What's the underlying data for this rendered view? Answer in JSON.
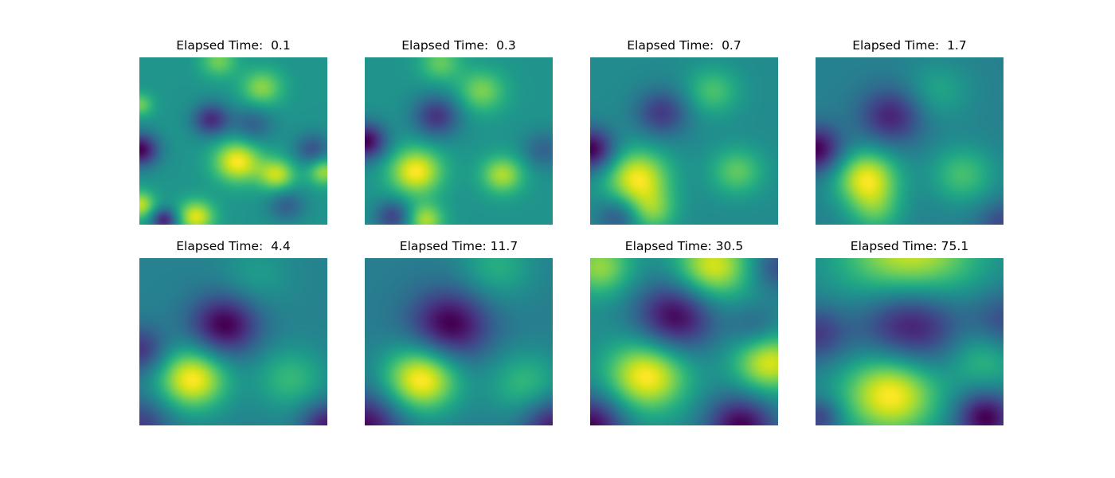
{
  "figure": {
    "colormap": "viridis",
    "grid": false,
    "axes_visible": false
  },
  "chart_data": [
    {
      "type": "heatmap",
      "title": "Elapsed Time:  0.1",
      "elapsed_time": 0.1,
      "colormap": "viridis",
      "description_values": "random multi-scale field with scattered bright blobs (lower-left, center-left, right) and dark spots (left edge, upper-center)",
      "blobs": [
        {
          "x": 0.52,
          "y": 0.62,
          "a": 0.55,
          "s": 0.09
        },
        {
          "x": 0.3,
          "y": 0.95,
          "a": 0.5,
          "s": 0.07
        },
        {
          "x": 0.0,
          "y": 0.88,
          "a": 0.45,
          "s": 0.06
        },
        {
          "x": 0.73,
          "y": 0.7,
          "a": 0.45,
          "s": 0.07
        },
        {
          "x": 0.98,
          "y": 0.68,
          "a": 0.4,
          "s": 0.06
        },
        {
          "x": 0.65,
          "y": 0.18,
          "a": 0.35,
          "s": 0.08
        },
        {
          "x": 0.42,
          "y": 0.02,
          "a": 0.3,
          "s": 0.07
        },
        {
          "x": 0.0,
          "y": 0.28,
          "a": 0.3,
          "s": 0.05
        },
        {
          "x": 0.0,
          "y": 0.55,
          "a": -0.6,
          "s": 0.07
        },
        {
          "x": 0.38,
          "y": 0.37,
          "a": -0.45,
          "s": 0.07
        },
        {
          "x": 0.13,
          "y": 0.97,
          "a": -0.5,
          "s": 0.05
        },
        {
          "x": 0.6,
          "y": 0.4,
          "a": -0.25,
          "s": 0.08
        },
        {
          "x": 0.92,
          "y": 0.55,
          "a": -0.3,
          "s": 0.07
        },
        {
          "x": 0.78,
          "y": 0.88,
          "a": -0.25,
          "s": 0.07
        }
      ]
    },
    {
      "type": "heatmap",
      "title": "Elapsed Time:  0.3",
      "elapsed_time": 0.3,
      "colormap": "viridis",
      "blobs": [
        {
          "x": 0.27,
          "y": 0.68,
          "a": 0.6,
          "s": 0.1
        },
        {
          "x": 0.32,
          "y": 0.97,
          "a": 0.45,
          "s": 0.07
        },
        {
          "x": 0.73,
          "y": 0.7,
          "a": 0.45,
          "s": 0.08
        },
        {
          "x": 0.62,
          "y": 0.2,
          "a": 0.35,
          "s": 0.09
        },
        {
          "x": 0.4,
          "y": 0.03,
          "a": 0.3,
          "s": 0.08
        },
        {
          "x": 0.0,
          "y": 0.5,
          "a": -0.65,
          "s": 0.08
        },
        {
          "x": 0.38,
          "y": 0.35,
          "a": -0.45,
          "s": 0.09
        },
        {
          "x": 0.15,
          "y": 0.95,
          "a": -0.4,
          "s": 0.07
        },
        {
          "x": 0.95,
          "y": 0.55,
          "a": -0.25,
          "s": 0.08
        }
      ]
    },
    {
      "type": "heatmap",
      "title": "Elapsed Time:  0.7",
      "elapsed_time": 0.7,
      "colormap": "viridis",
      "blobs": [
        {
          "x": 0.25,
          "y": 0.72,
          "a": 0.65,
          "s": 0.12
        },
        {
          "x": 0.33,
          "y": 0.92,
          "a": 0.35,
          "s": 0.09
        },
        {
          "x": 0.78,
          "y": 0.68,
          "a": 0.35,
          "s": 0.1
        },
        {
          "x": 0.65,
          "y": 0.2,
          "a": 0.3,
          "s": 0.1
        },
        {
          "x": 0.0,
          "y": 0.55,
          "a": -0.65,
          "s": 0.09
        },
        {
          "x": 0.38,
          "y": 0.33,
          "a": -0.4,
          "s": 0.1
        },
        {
          "x": 0.15,
          "y": 0.95,
          "a": -0.3,
          "s": 0.08
        }
      ]
    },
    {
      "type": "heatmap",
      "title": "Elapsed Time:  1.7",
      "elapsed_time": 1.7,
      "colormap": "viridis",
      "blobs": [
        {
          "x": 0.27,
          "y": 0.72,
          "a": 0.7,
          "s": 0.12
        },
        {
          "x": 0.32,
          "y": 0.92,
          "a": 0.3,
          "s": 0.1
        },
        {
          "x": 0.78,
          "y": 0.7,
          "a": 0.35,
          "s": 0.12
        },
        {
          "x": 0.65,
          "y": 0.2,
          "a": 0.2,
          "s": 0.12
        },
        {
          "x": 0.0,
          "y": 0.55,
          "a": -0.6,
          "s": 0.1
        },
        {
          "x": 0.4,
          "y": 0.35,
          "a": -0.45,
          "s": 0.12
        },
        {
          "x": 1.0,
          "y": 1.0,
          "a": -0.3,
          "s": 0.1
        }
      ]
    },
    {
      "type": "heatmap",
      "title": "Elapsed Time:  4.4",
      "elapsed_time": 4.4,
      "colormap": "viridis",
      "blobs": [
        {
          "x": 0.28,
          "y": 0.72,
          "a": 0.75,
          "s": 0.13
        },
        {
          "x": 0.8,
          "y": 0.72,
          "a": 0.3,
          "s": 0.13
        },
        {
          "x": 0.62,
          "y": 0.1,
          "a": 0.15,
          "s": 0.13
        },
        {
          "x": 0.45,
          "y": 0.4,
          "a": -0.6,
          "s": 0.13
        },
        {
          "x": 0.0,
          "y": 0.55,
          "a": -0.4,
          "s": 0.1
        },
        {
          "x": 0.0,
          "y": 1.0,
          "a": -0.35,
          "s": 0.12
        },
        {
          "x": 1.0,
          "y": 1.0,
          "a": -0.5,
          "s": 0.1
        }
      ]
    },
    {
      "type": "heatmap",
      "title": "Elapsed Time: 11.7",
      "elapsed_time": 11.7,
      "colormap": "viridis",
      "blobs": [
        {
          "x": 0.3,
          "y": 0.72,
          "a": 0.75,
          "s": 0.14
        },
        {
          "x": 0.85,
          "y": 0.75,
          "a": 0.3,
          "s": 0.14
        },
        {
          "x": 0.7,
          "y": 0.05,
          "a": 0.25,
          "s": 0.14
        },
        {
          "x": 0.45,
          "y": 0.4,
          "a": -0.55,
          "s": 0.15
        },
        {
          "x": 0.0,
          "y": 1.0,
          "a": -0.5,
          "s": 0.14
        },
        {
          "x": 1.0,
          "y": 1.0,
          "a": -0.45,
          "s": 0.12
        }
      ]
    },
    {
      "type": "heatmap",
      "title": "Elapsed Time: 30.5",
      "elapsed_time": 30.5,
      "colormap": "viridis",
      "blobs": [
        {
          "x": 0.3,
          "y": 0.7,
          "a": 0.9,
          "s": 0.15
        },
        {
          "x": 0.95,
          "y": 0.62,
          "a": 0.8,
          "s": 0.13
        },
        {
          "x": 0.65,
          "y": 0.05,
          "a": 0.8,
          "s": 0.14
        },
        {
          "x": 0.05,
          "y": 0.05,
          "a": 0.6,
          "s": 0.12
        },
        {
          "x": 0.45,
          "y": 0.35,
          "a": -0.8,
          "s": 0.15
        },
        {
          "x": 0.0,
          "y": 1.0,
          "a": -0.8,
          "s": 0.13
        },
        {
          "x": 0.8,
          "y": 1.0,
          "a": -0.8,
          "s": 0.13
        },
        {
          "x": 1.0,
          "y": 0.05,
          "a": -0.4,
          "s": 0.1
        },
        {
          "x": 0.88,
          "y": 0.42,
          "a": -0.3,
          "s": 0.1
        }
      ]
    },
    {
      "type": "heatmap",
      "title": "Elapsed Time: 75.1",
      "elapsed_time": 75.1,
      "colormap": "viridis",
      "blobs": [
        {
          "x": 0.5,
          "y": 0.02,
          "a": 1.2,
          "s": 0.25
        },
        {
          "x": 0.4,
          "y": 0.8,
          "a": 1.3,
          "s": 0.18
        },
        {
          "x": 0.9,
          "y": 0.58,
          "a": 0.6,
          "s": 0.14
        },
        {
          "x": 0.5,
          "y": 0.38,
          "a": -1.2,
          "s": 0.2
        },
        {
          "x": 0.0,
          "y": 0.45,
          "a": -0.6,
          "s": 0.12
        },
        {
          "x": 1.0,
          "y": 0.4,
          "a": -0.6,
          "s": 0.14
        },
        {
          "x": 0.9,
          "y": 0.95,
          "a": -1.0,
          "s": 0.11
        },
        {
          "x": 0.02,
          "y": 0.95,
          "a": -0.6,
          "s": 0.08
        }
      ]
    }
  ]
}
